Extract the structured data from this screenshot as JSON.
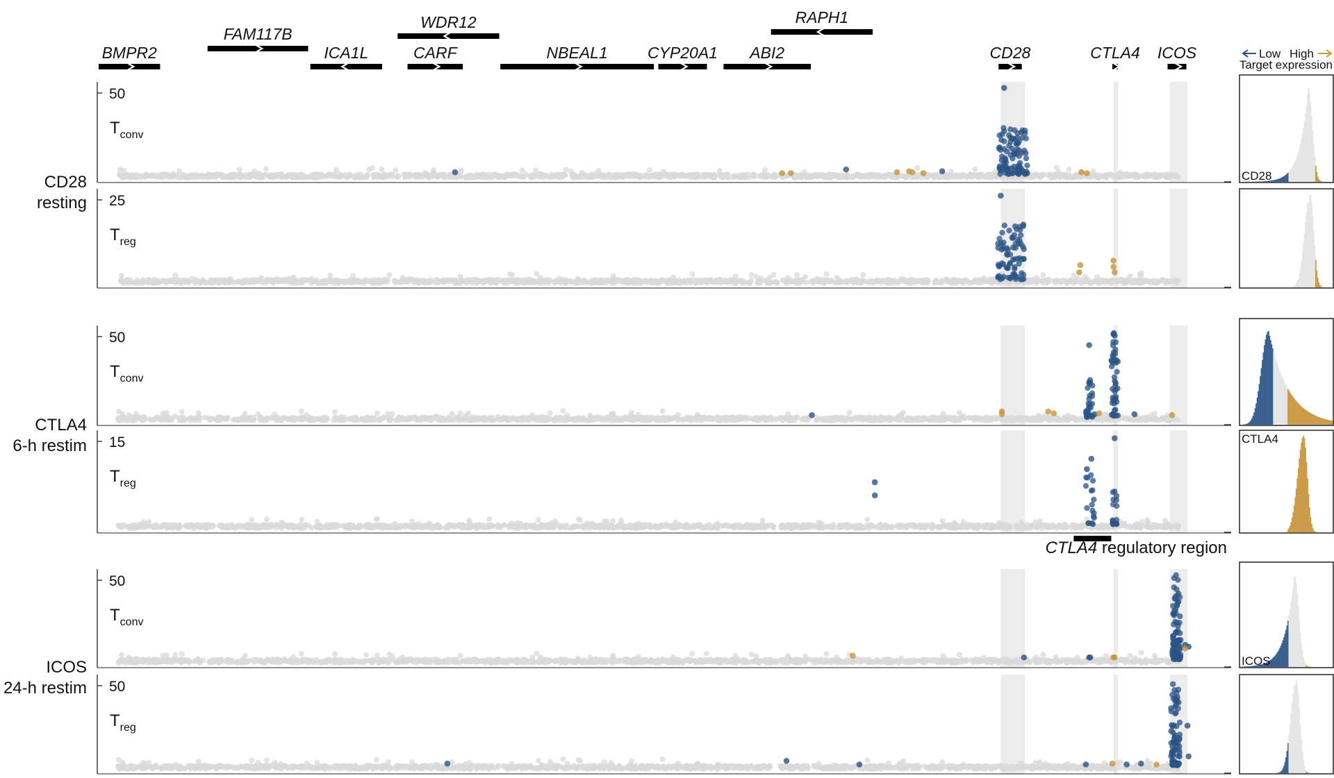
{
  "chart_data": {
    "type": "scatter",
    "title": "",
    "xlabel": "",
    "genes": [
      {
        "name": "BMPR2",
        "start": 0.0,
        "end": 0.038,
        "strand": "+",
        "track": 0
      },
      {
        "name": "FAM117B",
        "start": 0.081,
        "end": 0.172,
        "strand": "+",
        "track": 1
      },
      {
        "name": "ICA1L",
        "start": 0.174,
        "end": 0.239,
        "strand": "-",
        "track": 0
      },
      {
        "name": "WDR12",
        "start": 0.253,
        "end": 0.345,
        "strand": "-",
        "track": 2
      },
      {
        "name": "CARF",
        "start": 0.262,
        "end": 0.312,
        "strand": "+",
        "track": 0
      },
      {
        "name": "NBEAL1",
        "start": 0.346,
        "end": 0.485,
        "strand": "+",
        "track": 0
      },
      {
        "name": "CYP20A1",
        "start": 0.489,
        "end": 0.533,
        "strand": "+",
        "track": 0
      },
      {
        "name": "ABI2",
        "start": 0.548,
        "end": 0.627,
        "strand": "+",
        "track": 0
      },
      {
        "name": "RAPH1",
        "start": 0.591,
        "end": 0.683,
        "strand": "-",
        "track": 3
      },
      {
        "name": "CD28",
        "start": 0.797,
        "end": 0.818,
        "strand": "+",
        "track": 0
      },
      {
        "name": "CTLA4",
        "start": 0.9,
        "end": 0.905,
        "strand": "+",
        "track": 0
      },
      {
        "name": "ICOS",
        "start": 0.95,
        "end": 0.967,
        "strand": "+",
        "track": 0
      }
    ],
    "highlight_regions": [
      {
        "gene": "CD28",
        "start": 0.799,
        "end": 0.821
      },
      {
        "gene": "CTLA4",
        "start": 0.901,
        "end": 0.905
      },
      {
        "gene": "ICOS",
        "start": 0.952,
        "end": 0.968
      }
    ],
    "regulatory_region": {
      "label_gene": "CTLA4",
      "label_rest": "regulatory region",
      "start": 0.865,
      "end": 0.899
    },
    "legend": {
      "low": "Low",
      "high": "High",
      "caption": "Target expression",
      "low_color": "#2b5486",
      "high_color": "#d09a39"
    },
    "colors": {
      "low": "#2b5486",
      "high": "#c9943a",
      "background": "#d9d9d9",
      "highlight": "#ececec"
    },
    "groups": [
      {
        "label_line1": "CD28",
        "label_line2": "resting",
        "hist_label": "CD28",
        "hist": {
          "peak": 0.73,
          "width": 0.075,
          "skew": "left",
          "cut_low": 0.52,
          "cut_high": 0.8
        },
        "panels": [
          {
            "cell": "T",
            "sub": "conv",
            "ymax": 50,
            "ytick": "50",
            "clusters": [
              {
                "x": 0.81,
                "w": 0.013,
                "n": 95,
                "ymax": 0.55,
                "color": "low"
              }
            ],
            "points": [
              [
                0.802,
                0.98,
                "low"
              ],
              [
                0.305,
                0.06,
                "low"
              ],
              [
                0.659,
                0.09,
                "low"
              ],
              [
                0.746,
                0.07,
                "low"
              ],
              [
                0.601,
                0.05,
                "high"
              ],
              [
                0.609,
                0.05,
                "high"
              ],
              [
                0.705,
                0.06,
                "high"
              ],
              [
                0.716,
                0.07,
                "high"
              ],
              [
                0.719,
                0.06,
                "high"
              ],
              [
                0.729,
                0.05,
                "high"
              ],
              [
                0.872,
                0.06,
                "high"
              ],
              [
                0.877,
                0.05,
                "high"
              ]
            ]
          },
          {
            "cell": "T",
            "sub": "reg",
            "ymax": 25,
            "ytick": "25",
            "clusters": [
              {
                "x": 0.808,
                "w": 0.012,
                "n": 75,
                "ymax": 0.65,
                "color": "low"
              }
            ],
            "points": [
              [
                0.799,
                0.97,
                "low"
              ],
              [
                0.871,
                0.2,
                "high"
              ],
              [
                0.87,
                0.12,
                "high"
              ],
              [
                0.901,
                0.25,
                "high"
              ],
              [
                0.901,
                0.18,
                "high"
              ],
              [
                0.902,
                0.12,
                "high"
              ]
            ]
          }
        ]
      },
      {
        "label_line1": "CTLA4",
        "label_line2": "6-h restim",
        "hist_label": "CTLA4",
        "hist": {
          "peak": 0.3,
          "width": 0.12,
          "skew": "right",
          "cut_low": 0.35,
          "cut_high": 0.5
        },
        "panels": [
          {
            "cell": "T",
            "sub": "conv",
            "ymax": 50,
            "ytick": "50",
            "clusters": [
              {
                "x": 0.879,
                "w": 0.003,
                "n": 30,
                "ymax": 0.45,
                "color": "low"
              },
              {
                "x": 0.902,
                "w": 0.003,
                "n": 45,
                "ymax": 0.98,
                "color": "low"
              }
            ],
            "points": [
              [
                0.879,
                0.83,
                "low"
              ],
              [
                0.901,
                0.95,
                "low"
              ],
              [
                0.628,
                0.06,
                "low"
              ],
              [
                0.92,
                0.07,
                "low"
              ],
              [
                0.884,
                0.07,
                "low"
              ],
              [
                0.8,
                0.1,
                "high"
              ],
              [
                0.8,
                0.07,
                "high"
              ],
              [
                0.842,
                0.1,
                "high"
              ],
              [
                0.847,
                0.08,
                "high"
              ],
              [
                0.888,
                0.08,
                "high"
              ],
              [
                0.954,
                0.06,
                "high"
              ]
            ]
          },
          {
            "cell": "T",
            "sub": "reg",
            "ymax": 15,
            "ytick": "15",
            "clusters": [
              {
                "x": 0.88,
                "w": 0.004,
                "n": 18,
                "ymax": 0.6,
                "color": "low"
              },
              {
                "x": 0.902,
                "w": 0.002,
                "n": 16,
                "ymax": 0.5,
                "color": "low"
              }
            ],
            "points": [
              [
                0.902,
                0.96,
                "low"
              ],
              [
                0.881,
                0.74,
                "low"
              ],
              [
                0.877,
                0.63,
                "low"
              ],
              [
                0.685,
                0.49,
                "low"
              ],
              [
                0.685,
                0.35,
                "low"
              ]
            ]
          }
        ]
      },
      {
        "label_line1": "ICOS",
        "label_line2": "24-h restim",
        "hist_label": "ICOS",
        "hist": {
          "peak": 0.58,
          "width": 0.08,
          "skew": "left",
          "cut_low": 0.52,
          "cut_high": 0.7
        },
        "panels": [
          {
            "cell": "T",
            "sub": "conv",
            "ymax": 50,
            "ytick": "50",
            "clusters": [
              {
                "x": 0.958,
                "w": 0.004,
                "n": 80,
                "ymax": 0.99,
                "color": "low"
              }
            ],
            "points": [
              [
                0.966,
                0.2,
                "low"
              ],
              [
                0.969,
                0.18,
                "low"
              ],
              [
                0.82,
                0.06,
                "low"
              ],
              [
                0.879,
                0.06,
                "low"
              ],
              [
                0.88,
                0.06,
                "low"
              ],
              [
                0.665,
                0.08,
                "high"
              ],
              [
                0.901,
                0.06,
                "high"
              ],
              [
                0.902,
                0.06,
                "high"
              ],
              [
                0.966,
                0.16,
                "high"
              ]
            ]
          },
          {
            "cell": "T",
            "sub": "reg",
            "ymax": 50,
            "ytick": "50",
            "clusters": [
              {
                "x": 0.957,
                "w": 0.004,
                "n": 80,
                "ymax": 0.97,
                "color": "low"
              }
            ],
            "points": [
              [
                0.968,
                0.48,
                "low"
              ],
              [
                0.969,
                0.14,
                "low"
              ],
              [
                0.298,
                0.06,
                "low"
              ],
              [
                0.605,
                0.09,
                "low"
              ],
              [
                0.671,
                0.05,
                "low"
              ],
              [
                0.876,
                0.05,
                "low"
              ],
              [
                0.913,
                0.05,
                "low"
              ],
              [
                0.926,
                0.06,
                "low"
              ],
              [
                0.9,
                0.06,
                "high"
              ],
              [
                0.94,
                0.05,
                "high"
              ]
            ]
          }
        ]
      }
    ]
  }
}
